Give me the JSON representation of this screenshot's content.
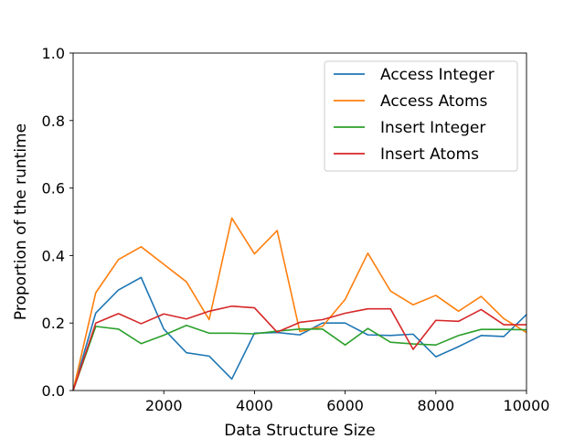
{
  "chart_data": {
    "type": "line",
    "title": "",
    "xlabel": "Data Structure Size",
    "ylabel": "Proportion of the runtime",
    "xlim": [
      0,
      10000
    ],
    "ylim": [
      0.0,
      1.0
    ],
    "x_ticks": [
      "2000",
      "4000",
      "6000",
      "8000",
      "10000"
    ],
    "y_ticks": [
      "0.0",
      "0.2",
      "0.4",
      "0.6",
      "0.8",
      "1.0"
    ],
    "grid": false,
    "legend_position": "top-right",
    "x": [
      0,
      500,
      1000,
      1500,
      2000,
      2500,
      3000,
      3500,
      4000,
      4500,
      5000,
      5500,
      6000,
      6500,
      7000,
      7500,
      8000,
      8500,
      9000,
      9500,
      10000
    ],
    "series": [
      {
        "name": "Access Integer",
        "color": "#1f77b4",
        "values": [
          0.0,
          0.23,
          0.298,
          0.335,
          0.182,
          0.112,
          0.102,
          0.034,
          0.17,
          0.172,
          0.165,
          0.2,
          0.2,
          0.165,
          0.163,
          0.167,
          0.1,
          0.13,
          0.163,
          0.16,
          0.225
        ]
      },
      {
        "name": "Access Atoms",
        "color": "#ff7f0e",
        "values": [
          0.0,
          0.29,
          0.388,
          0.426,
          0.374,
          0.322,
          0.21,
          0.511,
          0.405,
          0.474,
          0.175,
          0.19,
          0.27,
          0.407,
          0.295,
          0.254,
          0.282,
          0.235,
          0.279,
          0.213,
          0.172
        ]
      },
      {
        "name": "Insert Integer",
        "color": "#2ca02c",
        "values": [
          0.0,
          0.19,
          0.182,
          0.139,
          0.164,
          0.193,
          0.17,
          0.17,
          0.168,
          0.176,
          0.182,
          0.182,
          0.135,
          0.184,
          0.143,
          0.138,
          0.135,
          0.163,
          0.181,
          0.181,
          0.18
        ]
      },
      {
        "name": "Insert Atoms",
        "color": "#d62728",
        "values": [
          0.0,
          0.2,
          0.228,
          0.198,
          0.227,
          0.212,
          0.235,
          0.25,
          0.245,
          0.173,
          0.202,
          0.21,
          0.229,
          0.242,
          0.242,
          0.122,
          0.208,
          0.205,
          0.24,
          0.195,
          0.195
        ]
      }
    ]
  }
}
